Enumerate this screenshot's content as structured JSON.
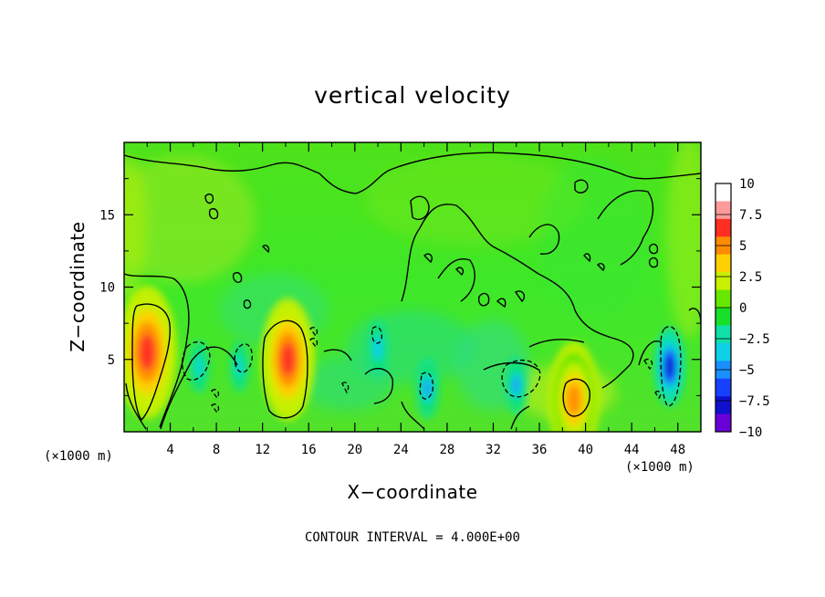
{
  "chart_data": {
    "type": "heatmap",
    "title": "vertical velocity",
    "xlabel": "X−coordinate",
    "ylabel": "Z−coordinate",
    "x_unit": "(×1000 m)",
    "y_unit": "(×1000 m)",
    "xlim": [
      0,
      50
    ],
    "ylim": [
      0,
      20
    ],
    "x_ticks": [
      "4",
      "8",
      "12",
      "16",
      "20",
      "24",
      "28",
      "32",
      "36",
      "40",
      "44",
      "48"
    ],
    "x_tick_values": [
      4,
      8,
      12,
      16,
      20,
      24,
      28,
      32,
      36,
      40,
      44,
      48
    ],
    "y_ticks": [
      "5",
      "10",
      "15"
    ],
    "y_tick_values": [
      5,
      10,
      15
    ],
    "contour_interval_text": "CONTOUR INTERVAL = 4.000E+00",
    "colorbar": {
      "labels": [
        "10",
        "7.5",
        "5",
        "2.5",
        "0",
        "−2.5",
        "−5",
        "−7.5",
        "−10"
      ],
      "values": [
        10,
        7.5,
        5,
        2.5,
        0,
        -2.5,
        -5,
        -7.5,
        -10
      ],
      "colors": [
        "#ffffff",
        "#ff9a9a",
        "#ff2e22",
        "#ff8c00",
        "#ffd000",
        "#c8f000",
        "#66e800",
        "#18e028",
        "#10e0a8",
        "#10d0e8",
        "#1890ff",
        "#1840ff",
        "#1010d0",
        "#6800d8"
      ]
    },
    "features": [
      {
        "x": 2.0,
        "z": 5.5,
        "w": 7.5,
        "kind": "updraft"
      },
      {
        "x": 14.2,
        "z": 5.0,
        "w": 6.5,
        "kind": "updraft"
      },
      {
        "x": 39.0,
        "z": 2.2,
        "w": 6.0,
        "kind": "updraft"
      },
      {
        "x": 6.5,
        "z": 4.5,
        "w": -4.0,
        "kind": "downdraft"
      },
      {
        "x": 10.0,
        "z": 4.5,
        "w": -3.5,
        "kind": "downdraft"
      },
      {
        "x": 26.3,
        "z": 3.0,
        "w": -5.5,
        "kind": "downdraft"
      },
      {
        "x": 22.0,
        "z": 5.8,
        "w": -4.5,
        "kind": "downdraft"
      },
      {
        "x": 34.0,
        "z": 3.2,
        "w": -5.0,
        "kind": "downdraft"
      },
      {
        "x": 47.3,
        "z": 4.5,
        "w": -9.0,
        "kind": "downdraft"
      }
    ]
  }
}
